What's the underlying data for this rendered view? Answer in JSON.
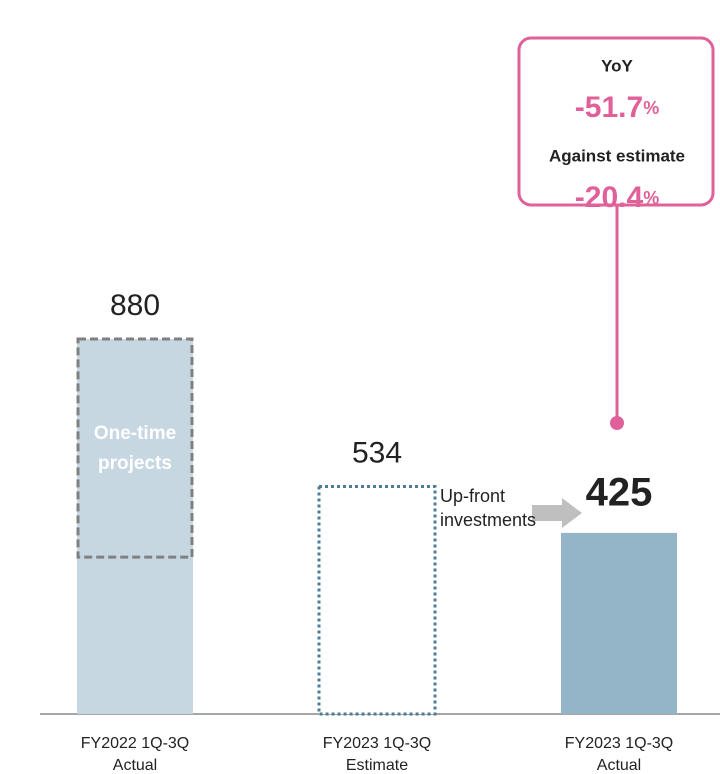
{
  "chart_data": {
    "type": "bar",
    "categories": [
      [
        "FY2022 1Q-3Q",
        "Actual"
      ],
      [
        "FY2023 1Q-3Q",
        "Estimate"
      ],
      [
        "FY2023 1Q-3Q",
        "Actual"
      ]
    ],
    "values": [
      880,
      534,
      425
    ],
    "colors": [
      "#c6d7e2",
      "#ffffff",
      "#94b4c8"
    ],
    "outline": [
      false,
      true,
      false
    ],
    "outline_color": "#4d7c97",
    "highlight": 2,
    "ylim": [
      0,
      880
    ],
    "segment": {
      "label": [
        "One-time",
        "projects"
      ],
      "value": 512,
      "category": 0
    },
    "arrow_note": [
      "Up-front",
      "investments"
    ],
    "callout": {
      "color": "#e0609a",
      "items": [
        {
          "label": "YoY",
          "value": "-51.7",
          "unit": "%"
        },
        {
          "label": "Against estimate",
          "value": "-20.4",
          "unit": "%"
        }
      ]
    }
  }
}
